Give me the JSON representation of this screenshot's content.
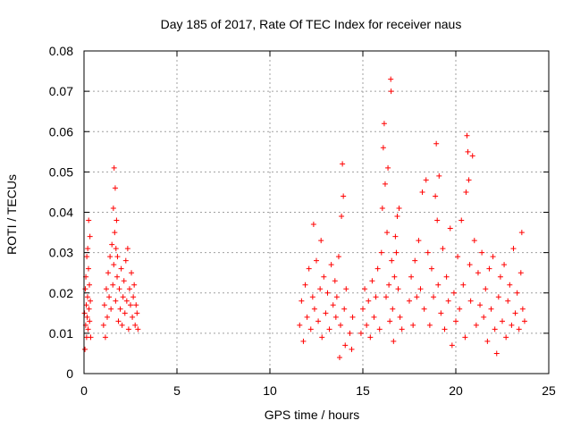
{
  "chart_data": {
    "type": "scatter",
    "title": "Day 185 of 2017, Rate Of TEC Index for receiver naus",
    "xlabel": "GPS time / hours",
    "ylabel": "ROTI / TECUs",
    "xlim": [
      0,
      25
    ],
    "ylim": [
      0,
      0.08
    ],
    "x_ticks": [
      "0",
      "5",
      "10",
      "15",
      "20",
      "25"
    ],
    "y_ticks": [
      "0",
      "0.01",
      "0.02",
      "0.03",
      "0.04",
      "0.05",
      "0.06",
      "0.07",
      "0.08"
    ],
    "grid": true,
    "marker": "+",
    "marker_color": "#ff0000",
    "series": [
      {
        "points": [
          [
            0.03,
            0.015
          ],
          [
            0.05,
            0.006
          ],
          [
            0.07,
            0.021
          ],
          [
            0.09,
            0.012
          ],
          [
            0.1,
            0.024
          ],
          [
            0.12,
            0.017
          ],
          [
            0.14,
            0.009
          ],
          [
            0.15,
            0.029
          ],
          [
            0.17,
            0.014
          ],
          [
            0.19,
            0.019
          ],
          [
            0.2,
            0.031
          ],
          [
            0.22,
            0.011
          ],
          [
            0.24,
            0.026
          ],
          [
            0.25,
            0.038
          ],
          [
            0.27,
            0.016
          ],
          [
            0.29,
            0.022
          ],
          [
            0.3,
            0.013
          ],
          [
            0.32,
            0.034
          ],
          [
            0.34,
            0.018
          ],
          [
            0.36,
            0.009
          ],
          [
            1.05,
            0.012
          ],
          [
            1.1,
            0.017
          ],
          [
            1.15,
            0.009
          ],
          [
            1.2,
            0.021
          ],
          [
            1.25,
            0.014
          ],
          [
            1.3,
            0.025
          ],
          [
            1.35,
            0.019
          ],
          [
            1.4,
            0.029
          ],
          [
            1.45,
            0.016
          ],
          [
            1.5,
            0.032
          ],
          [
            1.55,
            0.022
          ],
          [
            1.58,
            0.041
          ],
          [
            1.6,
            0.027
          ],
          [
            1.62,
            0.051
          ],
          [
            1.65,
            0.035
          ],
          [
            1.68,
            0.046
          ],
          [
            1.7,
            0.018
          ],
          [
            1.72,
            0.031
          ],
          [
            1.75,
            0.038
          ],
          [
            1.78,
            0.024
          ],
          [
            1.8,
            0.029
          ],
          [
            1.85,
            0.013
          ],
          [
            1.9,
            0.021
          ],
          [
            1.95,
            0.016
          ],
          [
            2.0,
            0.026
          ],
          [
            2.05,
            0.012
          ],
          [
            2.1,
            0.019
          ],
          [
            2.15,
            0.023
          ],
          [
            2.2,
            0.015
          ],
          [
            2.25,
            0.028
          ],
          [
            2.3,
            0.018
          ],
          [
            2.35,
            0.031
          ],
          [
            2.4,
            0.011
          ],
          [
            2.45,
            0.021
          ],
          [
            2.5,
            0.017
          ],
          [
            2.55,
            0.025
          ],
          [
            2.6,
            0.014
          ],
          [
            2.65,
            0.019
          ],
          [
            2.7,
            0.022
          ],
          [
            2.75,
            0.012
          ],
          [
            2.8,
            0.017
          ],
          [
            2.85,
            0.015
          ],
          [
            2.9,
            0.011
          ],
          [
            11.6,
            0.012
          ],
          [
            11.7,
            0.018
          ],
          [
            11.8,
            0.008
          ],
          [
            11.9,
            0.022
          ],
          [
            12.0,
            0.014
          ],
          [
            12.1,
            0.026
          ],
          [
            12.2,
            0.011
          ],
          [
            12.3,
            0.019
          ],
          [
            12.35,
            0.037
          ],
          [
            12.4,
            0.016
          ],
          [
            12.5,
            0.028
          ],
          [
            12.6,
            0.013
          ],
          [
            12.7,
            0.021
          ],
          [
            12.75,
            0.033
          ],
          [
            12.8,
            0.009
          ],
          [
            12.9,
            0.024
          ],
          [
            13.0,
            0.015
          ],
          [
            13.1,
            0.02
          ],
          [
            13.2,
            0.011
          ],
          [
            13.3,
            0.027
          ],
          [
            13.4,
            0.017
          ],
          [
            13.5,
            0.023
          ],
          [
            13.55,
            0.014
          ],
          [
            13.6,
            0.019
          ],
          [
            13.7,
            0.029
          ],
          [
            13.75,
            0.004
          ],
          [
            13.8,
            0.012
          ],
          [
            13.85,
            0.039
          ],
          [
            13.9,
            0.052
          ],
          [
            13.95,
            0.044
          ],
          [
            14.0,
            0.016
          ],
          [
            14.05,
            0.007
          ],
          [
            14.1,
            0.021
          ],
          [
            14.3,
            0.01
          ],
          [
            14.4,
            0.006
          ],
          [
            14.45,
            0.014
          ],
          [
            14.9,
            0.01
          ],
          [
            15.0,
            0.016
          ],
          [
            15.1,
            0.021
          ],
          [
            15.2,
            0.012
          ],
          [
            15.3,
            0.018
          ],
          [
            15.4,
            0.009
          ],
          [
            15.5,
            0.023
          ],
          [
            15.6,
            0.014
          ],
          [
            15.7,
            0.019
          ],
          [
            15.8,
            0.026
          ],
          [
            15.9,
            0.011
          ],
          [
            16.0,
            0.03
          ],
          [
            16.05,
            0.041
          ],
          [
            16.1,
            0.056
          ],
          [
            16.15,
            0.062
          ],
          [
            16.2,
            0.047
          ],
          [
            16.25,
            0.019
          ],
          [
            16.3,
            0.035
          ],
          [
            16.35,
            0.051
          ],
          [
            16.4,
            0.022
          ],
          [
            16.45,
            0.013
          ],
          [
            16.5,
            0.073
          ],
          [
            16.52,
            0.07
          ],
          [
            16.55,
            0.028
          ],
          [
            16.6,
            0.016
          ],
          [
            16.65,
            0.008
          ],
          [
            16.7,
            0.024
          ],
          [
            16.75,
            0.034
          ],
          [
            16.8,
            0.03
          ],
          [
            16.85,
            0.039
          ],
          [
            16.9,
            0.021
          ],
          [
            16.95,
            0.041
          ],
          [
            17.0,
            0.014
          ],
          [
            17.1,
            0.011
          ],
          [
            17.5,
            0.018
          ],
          [
            17.6,
            0.024
          ],
          [
            17.7,
            0.012
          ],
          [
            17.8,
            0.028
          ],
          [
            17.9,
            0.019
          ],
          [
            18.0,
            0.033
          ],
          [
            18.1,
            0.021
          ],
          [
            18.2,
            0.045
          ],
          [
            18.3,
            0.016
          ],
          [
            18.4,
            0.048
          ],
          [
            18.5,
            0.03
          ],
          [
            18.6,
            0.012
          ],
          [
            18.7,
            0.026
          ],
          [
            18.8,
            0.019
          ],
          [
            18.9,
            0.044
          ],
          [
            18.95,
            0.057
          ],
          [
            19.0,
            0.038
          ],
          [
            19.05,
            0.022
          ],
          [
            19.1,
            0.049
          ],
          [
            19.2,
            0.015
          ],
          [
            19.3,
            0.031
          ],
          [
            19.4,
            0.011
          ],
          [
            19.5,
            0.024
          ],
          [
            19.6,
            0.018
          ],
          [
            19.7,
            0.036
          ],
          [
            19.8,
            0.007
          ],
          [
            19.9,
            0.02
          ],
          [
            20.0,
            0.013
          ],
          [
            20.1,
            0.029
          ],
          [
            20.2,
            0.016
          ],
          [
            20.3,
            0.038
          ],
          [
            20.4,
            0.022
          ],
          [
            20.5,
            0.009
          ],
          [
            20.55,
            0.045
          ],
          [
            20.6,
            0.059
          ],
          [
            20.65,
            0.055
          ],
          [
            20.7,
            0.048
          ],
          [
            20.75,
            0.027
          ],
          [
            20.8,
            0.018
          ],
          [
            20.9,
            0.054
          ],
          [
            21.0,
            0.033
          ],
          [
            21.1,
            0.012
          ],
          [
            21.2,
            0.025
          ],
          [
            21.3,
            0.017
          ],
          [
            21.4,
            0.03
          ],
          [
            21.5,
            0.014
          ],
          [
            21.6,
            0.021
          ],
          [
            21.7,
            0.008
          ],
          [
            21.8,
            0.026
          ],
          [
            21.9,
            0.016
          ],
          [
            22.0,
            0.029
          ],
          [
            22.1,
            0.011
          ],
          [
            22.2,
            0.005
          ],
          [
            22.3,
            0.019
          ],
          [
            22.4,
            0.024
          ],
          [
            22.5,
            0.013
          ],
          [
            22.6,
            0.027
          ],
          [
            22.7,
            0.009
          ],
          [
            22.8,
            0.018
          ],
          [
            22.9,
            0.022
          ],
          [
            23.0,
            0.012
          ],
          [
            23.1,
            0.031
          ],
          [
            23.2,
            0.015
          ],
          [
            23.3,
            0.02
          ],
          [
            23.4,
            0.011
          ],
          [
            23.5,
            0.025
          ],
          [
            23.55,
            0.035
          ],
          [
            23.6,
            0.016
          ],
          [
            23.7,
            0.013
          ]
        ]
      }
    ]
  }
}
